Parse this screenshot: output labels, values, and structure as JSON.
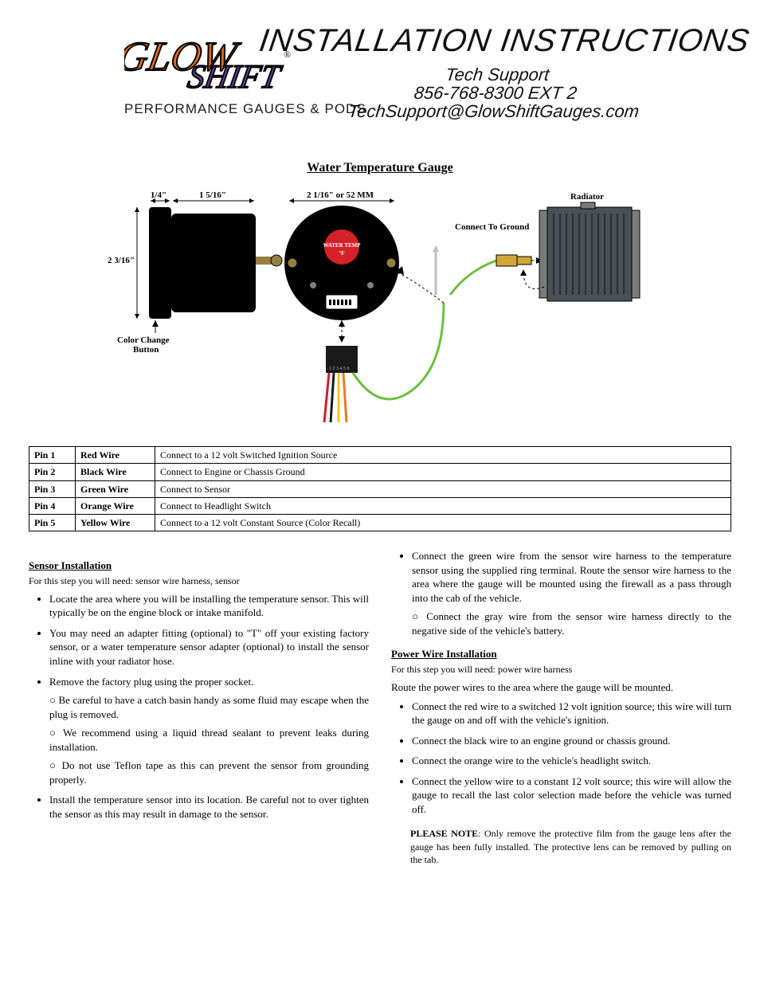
{
  "header": {
    "logo_glow": "GLOW",
    "logo_shift": "SHIFT",
    "sublogo": "PERFORMANCE GAUGES & PODS",
    "title": "INSTALLATION INSTRUCTIONS",
    "support_line1": "Tech Support",
    "support_line2": "856-768-8300 EXT 2",
    "support_line3": "TechSupport@GlowShiftGauges.com"
  },
  "gauge": {
    "title": "Water Temperature Gauge"
  },
  "diagram": {
    "dim_top_small": "1/4\"",
    "dim_top_large": "1 5/16\"",
    "dim_height": "2 3/16\"",
    "dim_face": "2 1/16\" or 52 MM",
    "label_radiator": "Radiator",
    "label_ground": "Connect To Ground",
    "label_button": "Color Change\nButton",
    "face_text": "WATER TEMP",
    "face_unit": "°F",
    "colors": {
      "gauge_body": "#000000",
      "gauge_stud": "#967f43",
      "radiator_body": "#495057",
      "radiator_tank": "#7a7a7a",
      "sensor_brass": "#d1a639",
      "wire_red": "#cc2127",
      "wire_black": "#1a1a1a",
      "wire_green": "#6cbf3f",
      "wire_yellow": "#f3c61f",
      "wire_orange": "#e87b24",
      "wire_gray": "#bfbfbf",
      "badge_red": "#d62027",
      "connector_body": "#1a1a1a",
      "connector_pins": "#ffffff"
    }
  },
  "pins": [
    {
      "pin": "Pin 1",
      "color": "Red Wire",
      "desc": "Connect to a 12 volt Switched Ignition Source"
    },
    {
      "pin": "Pin 2",
      "color": "Black Wire",
      "desc": "Connect to Engine or Chassis Ground"
    },
    {
      "pin": "Pin 3",
      "color": "Green Wire",
      "desc": "Connect to Sensor"
    },
    {
      "pin": "Pin 4",
      "color": "Orange Wire",
      "desc": "Connect to Headlight Switch"
    },
    {
      "pin": "Pin 5",
      "color": "Yellow Wire",
      "desc": "Connect to a 12 volt Constant Source (Color Recall)"
    }
  ],
  "sensor": {
    "title": "Sensor Installation",
    "sub": "For this step you will need: sensor wire harness, sensor",
    "items": [
      "Locate the area where you will be installing the temperature sensor. This will typically be on the engine block or intake manifold.",
      "You may need an adapter fitting (optional) to \"T\" off your existing factory sensor, or a water temperature sensor adapter (optional) to install the sensor inline with your radiator hose.",
      "Remove the factory plug using the proper socket."
    ],
    "sub_items": [
      "Be careful to have a catch basin handy as some fluid may escape when the plug is removed.",
      "We recommend using a liquid thread sealant to prevent leaks during installation.",
      "Do not use Teflon tape as this can prevent the sensor from grounding properly."
    ],
    "last_item": "Install the temperature sensor into its location. Be careful not to over tighten the sensor as this may result in damage to the sensor."
  },
  "sensor2": {
    "item": "Connect the green wire from the sensor wire harness to the temperature sensor using the supplied ring terminal. Route the sensor wire harness to the area where the gauge will be mounted using the firewall as a pass through into the cab of the vehicle.",
    "sub_items": [
      "Connect the gray wire from the sensor wire harness directly to the negative side of the vehicle's battery."
    ]
  },
  "power": {
    "title": "Power Wire Installation",
    "sub": "For this step you will need: power wire harness",
    "intro": "Route the power wires to the area where the gauge will be mounted.",
    "items": [
      "Connect the red wire to a switched 12 volt ignition source; this wire will turn the gauge on and off with the vehicle's ignition.",
      "Connect the black wire to an engine ground or chassis ground.",
      "Connect the orange wire to the vehicle's headlight switch.",
      "Connect the yellow wire to a constant 12 volt source; this wire will allow the gauge to recall the last color selection made before the vehicle was turned off."
    ]
  },
  "note": {
    "bold": "PLEASE NOTE",
    "text": ": Only remove the protective film from the gauge lens after the gauge has been fully installed. The protective lens can be removed by pulling on the tab."
  }
}
